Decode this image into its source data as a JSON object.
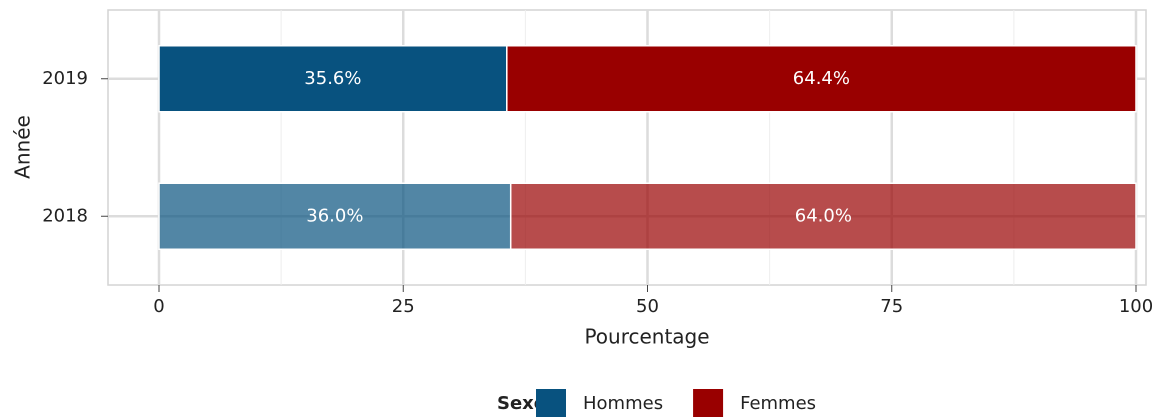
{
  "chart_data": {
    "type": "stacked_barh",
    "categories": [
      "2018",
      "2019"
    ],
    "category_opacity": [
      0.7,
      1
    ],
    "series": [
      {
        "name": "Hommes",
        "color": "#08527f",
        "values": [
          36.0,
          35.6
        ],
        "value_labels": [
          "36.0%",
          "35.6%"
        ]
      },
      {
        "name": "Femmes",
        "color": "#990000",
        "values": [
          64.0,
          64.4
        ],
        "value_labels": [
          "64.0%",
          "64.4%"
        ]
      }
    ],
    "x_label": "Pourcentage",
    "y_label": "Année",
    "xlim": [
      0,
      100
    ],
    "xticks": [
      0,
      25,
      50,
      75,
      100
    ],
    "grid": true,
    "legend_title": "Sexe",
    "legend_position": "bottom"
  }
}
